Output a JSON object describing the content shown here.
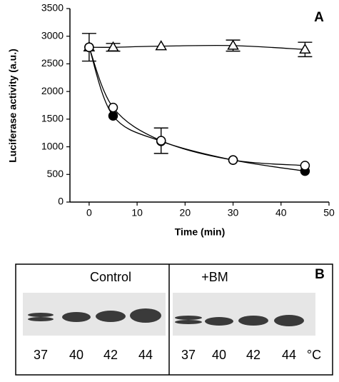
{
  "chart_data": {
    "type": "line",
    "panel_label": "A",
    "y_label": "Luciferase activity (a.u.)",
    "x_label": "Time (min)",
    "x": [
      0,
      5,
      15,
      30,
      45
    ],
    "series": [
      {
        "marker": "triangle",
        "color": "#000000",
        "values": [
          2800,
          2800,
          2820,
          2830,
          2760
        ],
        "errors": [
          null,
          70,
          null,
          100,
          130
        ]
      },
      {
        "marker": "filled-circle",
        "color": "#000000",
        "values": [
          2800,
          1560,
          1100,
          760,
          560
        ],
        "errors": [
          null,
          null,
          null,
          null,
          null
        ]
      },
      {
        "marker": "open-circle",
        "color": "#000000",
        "values": [
          2800,
          1710,
          1110,
          760,
          660
        ],
        "errors": [
          250,
          null,
          230,
          null,
          null
        ]
      }
    ],
    "xlim": [
      -4,
      50
    ],
    "xticks": [
      0,
      10,
      20,
      30,
      40,
      50
    ],
    "ylim": [
      0,
      3500
    ],
    "yticks": [
      0,
      500,
      1000,
      1500,
      2000,
      2500,
      3000,
      3500
    ],
    "grid": false
  },
  "panel_b": {
    "label": "B",
    "groups": [
      {
        "title": "Control",
        "lanes": [
          "37",
          "40",
          "42",
          "44"
        ]
      },
      {
        "title": "+BM",
        "lanes": [
          "37",
          "40",
          "42",
          "44"
        ]
      }
    ],
    "unit": "°C"
  }
}
